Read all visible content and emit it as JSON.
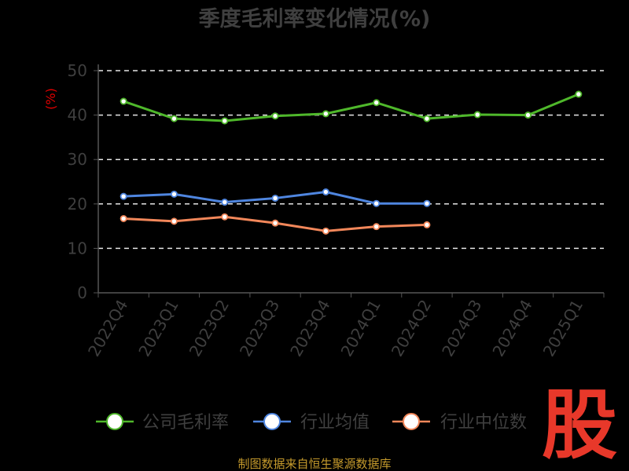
{
  "chart_data": {
    "type": "line",
    "title": "季度毛利率变化情况(%)",
    "ylabel": "(%)",
    "ylim": [
      0,
      50
    ],
    "yticks": [
      "0",
      "10",
      "20",
      "30",
      "40",
      "50"
    ],
    "categories": [
      "2022Q4",
      "2023Q1",
      "2023Q2",
      "2023Q3",
      "2023Q4",
      "2024Q1",
      "2024Q2",
      "2024Q3",
      "2024Q4",
      "2025Q1"
    ],
    "grid": true,
    "legend_position": "bottom",
    "series": [
      {
        "name": "公司毛利率",
        "color": "#4fb82b",
        "values": [
          43.1,
          39.2,
          38.7,
          39.8,
          40.3,
          42.8,
          39.2,
          40.1,
          40.0,
          44.7
        ]
      },
      {
        "name": "行业均值",
        "color": "#4f86e0",
        "values": [
          21.7,
          22.2,
          20.4,
          21.3,
          22.7,
          20.1,
          20.1,
          null,
          null,
          null
        ]
      },
      {
        "name": "行业中位数",
        "color": "#f2875a",
        "values": [
          16.7,
          16.1,
          17.1,
          15.7,
          13.9,
          14.9,
          15.3,
          null,
          null,
          null
        ]
      }
    ]
  },
  "footer": {
    "source": "制图数据来自恒生聚源数据库",
    "logo_text": "股"
  }
}
